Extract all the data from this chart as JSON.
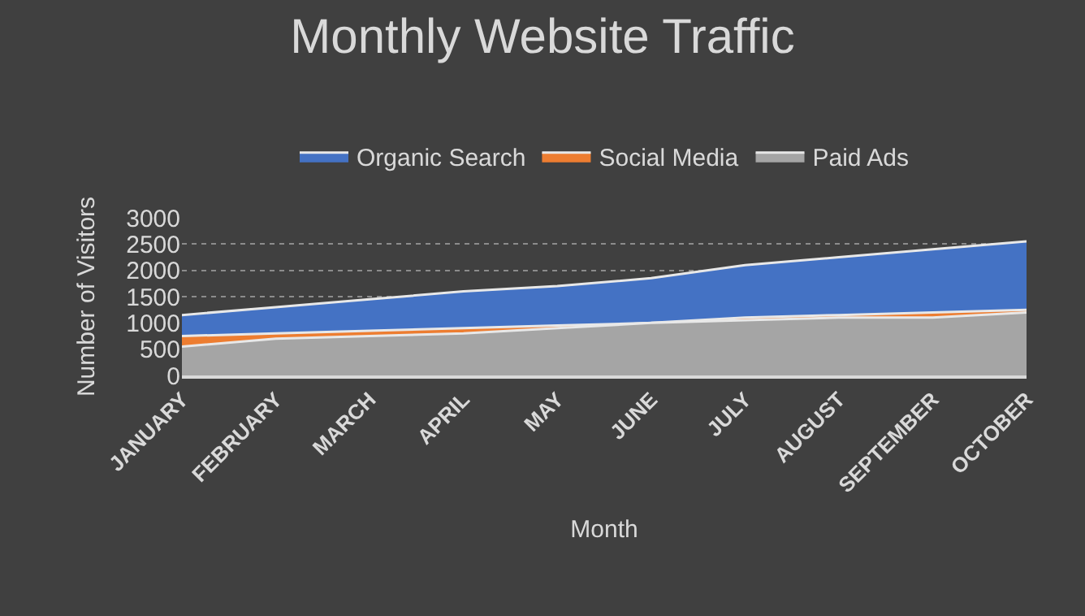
{
  "chart_data": {
    "type": "area",
    "title": "Monthly Website Traffic",
    "xlabel": "Month",
    "ylabel": "Number of Visitors",
    "categories": [
      "JANUARY",
      "FEBRUARY",
      "MARCH",
      "APRIL",
      "MAY",
      "JUNE",
      "JULY",
      "AUGUST",
      "SEPTEMBER",
      "OCTOBER"
    ],
    "series": [
      {
        "name": "Organic Search",
        "color": "#4472c4",
        "values": [
          1150,
          1300,
          1450,
          1600,
          1700,
          1850,
          2100,
          2250,
          2400,
          2550
        ]
      },
      {
        "name": "Social Media",
        "color": "#ed7d31",
        "values": [
          750,
          800,
          850,
          900,
          950,
          1000,
          1100,
          1150,
          1200,
          1250
        ]
      },
      {
        "name": "Paid Ads",
        "color": "#a5a5a5",
        "values": [
          550,
          700,
          750,
          800,
          900,
          1000,
          1050,
          1100,
          1100,
          1200
        ]
      }
    ],
    "ylim": [
      0,
      3000
    ],
    "yticks": [
      0,
      500,
      1000,
      1500,
      2000,
      2500,
      3000
    ],
    "grid": "y",
    "legend": "top"
  }
}
